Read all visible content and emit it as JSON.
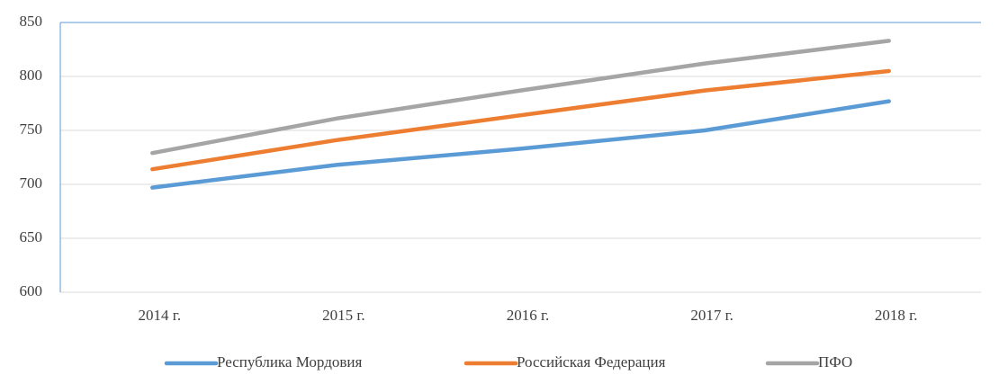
{
  "chart_data": {
    "type": "line",
    "categories": [
      "2014 г.",
      "2015 г.",
      "2016 г.",
      "2017 г.",
      "2018 г."
    ],
    "series": [
      {
        "name": "Республика Мордовия",
        "color": "#5b9bd5",
        "values": [
          697,
          718,
          733,
          750,
          777
        ]
      },
      {
        "name": "Российская Федерация",
        "color": "#ed7d31",
        "values": [
          714,
          741,
          764,
          787,
          805
        ]
      },
      {
        "name": "ПФО",
        "color": "#a5a5a5",
        "values": [
          729,
          761,
          787,
          812,
          833
        ]
      }
    ],
    "ylim": [
      600,
      850
    ],
    "yticks": [
      600,
      650,
      700,
      750,
      800,
      850
    ],
    "grid": true,
    "legend": "bottom"
  }
}
